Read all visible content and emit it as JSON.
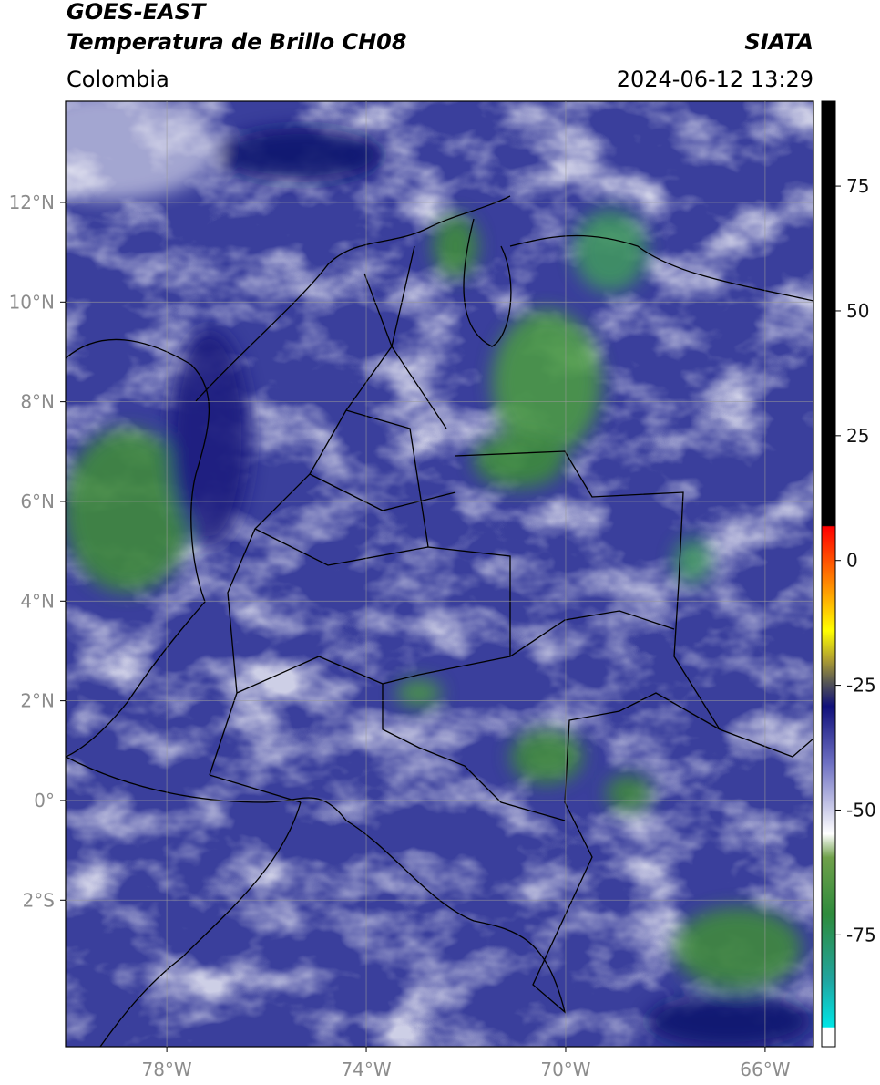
{
  "header": {
    "title_line1": "GOES-EAST",
    "title_line2": "Temperatura de Brillo CH08",
    "source": "SIATA",
    "region": "Colombia",
    "datetime": "2024-06-12 13:29"
  },
  "map": {
    "xlim": [
      -80.03,
      -65.03
    ],
    "ylim": [
      -4.94,
      14.03
    ],
    "xticks": [
      {
        "value": -78,
        "label": "78°W"
      },
      {
        "value": -74,
        "label": "74°W"
      },
      {
        "value": -70,
        "label": "70°W"
      },
      {
        "value": -66,
        "label": "66°W"
      }
    ],
    "yticks": [
      {
        "value": 12,
        "label": "12°N"
      },
      {
        "value": 10,
        "label": "10°N"
      },
      {
        "value": 8,
        "label": "8°N"
      },
      {
        "value": 6,
        "label": "6°N"
      },
      {
        "value": 4,
        "label": "4°N"
      },
      {
        "value": 2,
        "label": "2°N"
      },
      {
        "value": 0,
        "label": "0°"
      },
      {
        "value": -2,
        "label": "2°S"
      }
    ]
  },
  "colorbar": {
    "lim": [
      -97.4,
      92
    ],
    "ticks": [
      75,
      50,
      25,
      0,
      -25,
      -50,
      -75
    ]
  }
}
